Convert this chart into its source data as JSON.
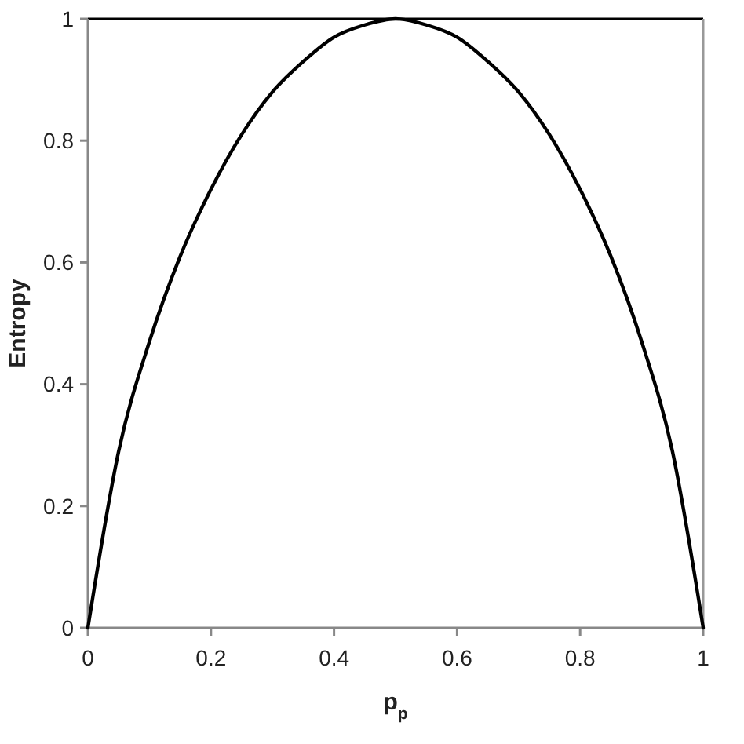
{
  "chart_data": {
    "type": "line",
    "xlabel": "p$_{p}$",
    "ylabel": "Entropy",
    "x": [
      0,
      0.05,
      0.1,
      0.15,
      0.2,
      0.25,
      0.3,
      0.35,
      0.4,
      0.45,
      0.5,
      0.55,
      0.6,
      0.65,
      0.7,
      0.75,
      0.8,
      0.85,
      0.9,
      0.95,
      1
    ],
    "series": [
      {
        "color": "#000000",
        "values": [
          0,
          0.29,
          0.47,
          0.61,
          0.72,
          0.81,
          0.88,
          0.93,
          0.97,
          0.99,
          1,
          0.99,
          0.97,
          0.93,
          0.88,
          0.81,
          0.72,
          0.61,
          0.47,
          0.29,
          0
        ]
      }
    ],
    "xlim": [
      0,
      1
    ],
    "ylim": [
      0,
      1
    ],
    "xticks": [
      0,
      0.2,
      0.4,
      0.6,
      0.8,
      1
    ],
    "yticks": [
      0,
      0.2,
      0.4,
      0.6,
      0.8,
      1
    ],
    "grid": false,
    "marker": "none",
    "line_style": "solid"
  }
}
